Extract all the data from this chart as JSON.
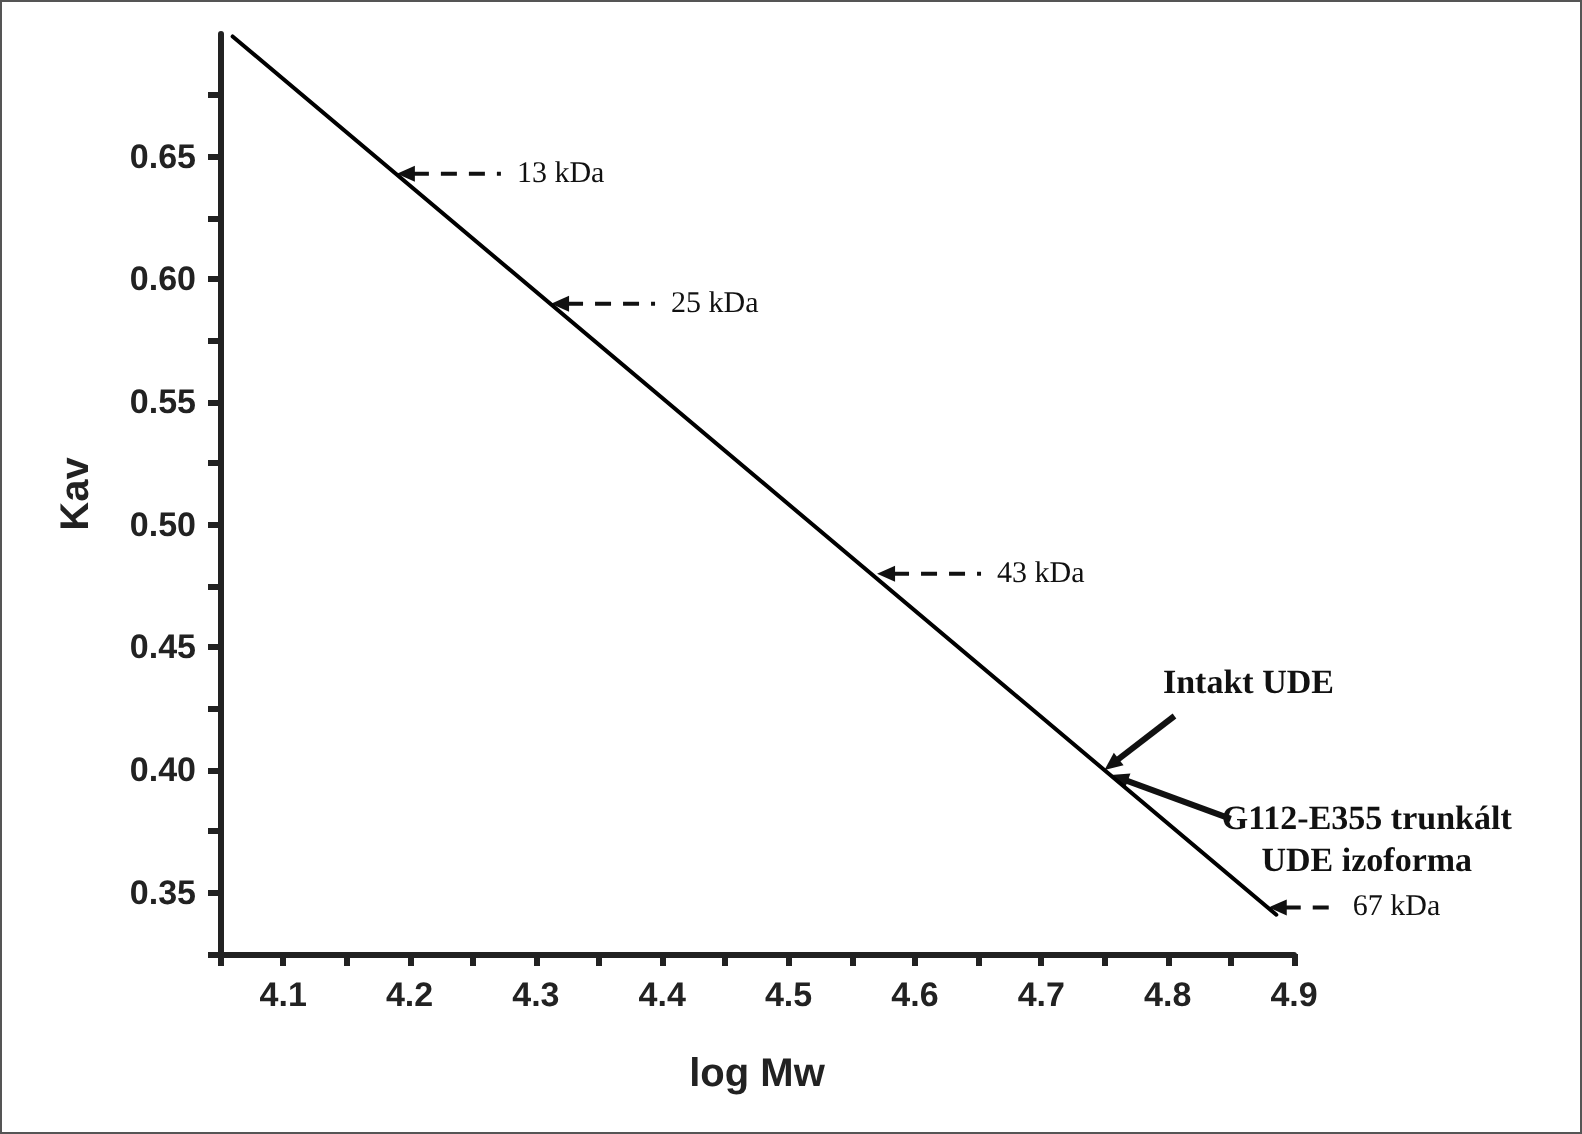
{
  "chart_data": {
    "type": "line",
    "xlabel": "log Mw",
    "ylabel": "Kav",
    "x": [
      4.06,
      4.886
    ],
    "series": [
      {
        "color": "#000000",
        "values": [
          0.699,
          0.341
        ]
      }
    ],
    "xlim": [
      4.05,
      4.9
    ],
    "xticks": [
      {
        "value": 4.05,
        "label": null
      },
      4.1,
      {
        "value": 4.15,
        "label": null
      },
      4.2,
      {
        "value": 4.25,
        "label": null
      },
      4.3,
      {
        "value": 4.35,
        "label": null
      },
      4.4,
      {
        "value": 4.45,
        "label": null
      },
      4.5,
      {
        "value": 4.55,
        "label": null
      },
      4.6,
      {
        "value": 4.65,
        "label": null
      },
      4.7,
      {
        "value": 4.75,
        "label": null
      },
      4.8,
      {
        "value": 4.85,
        "label": null
      },
      4.9
    ],
    "ylim": [
      0.325,
      0.7
    ],
    "yticks": [
      {
        "value": 0.325,
        "label": null
      },
      {
        "value": 0.35,
        "label": "0.35"
      },
      {
        "value": 0.375,
        "label": null
      },
      {
        "value": 0.4,
        "label": "0.40"
      },
      {
        "value": 0.425,
        "label": null
      },
      {
        "value": 0.45,
        "label": "0.45"
      },
      {
        "value": 0.475,
        "label": null
      },
      {
        "value": 0.5,
        "label": "0.50"
      },
      {
        "value": 0.525,
        "label": null
      },
      {
        "value": 0.55,
        "label": "0.55"
      },
      {
        "value": 0.575,
        "label": null
      },
      {
        "value": 0.6,
        "label": "0.60"
      },
      {
        "value": 0.625,
        "label": null
      },
      {
        "value": 0.65,
        "label": "0.65"
      },
      {
        "value": 0.675,
        "label": null
      }
    ],
    "grid": false,
    "marker": "none",
    "line_style": "solid",
    "annotations": [
      {
        "text": "13 kDa",
        "x": 4.19,
        "y": 0.643
      },
      {
        "text": "25 kDa",
        "x": 4.312,
        "y": 0.59
      },
      {
        "text": "43 kDa",
        "x": 4.57,
        "y": 0.48
      },
      {
        "text": "67 kDa",
        "x": 4.88,
        "y": 0.344
      },
      {
        "text": "Intakt UDE",
        "x": 4.75,
        "y": 0.4
      },
      {
        "text": "G112-E355 trunkált\nUDE izoforma",
        "x": 4.755,
        "y": 0.398
      }
    ]
  }
}
